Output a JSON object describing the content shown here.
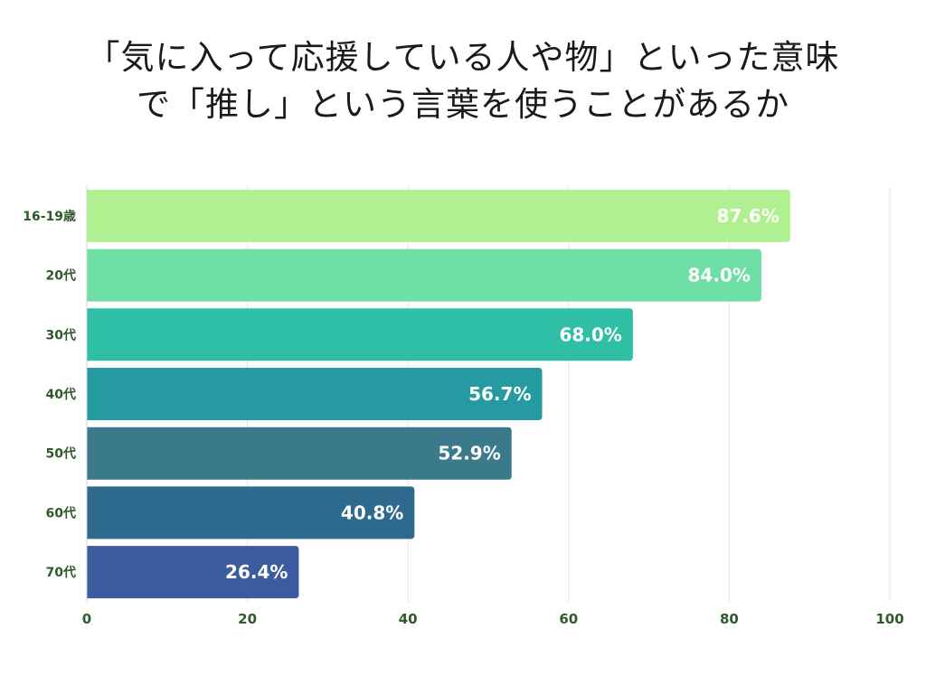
{
  "chart_data": {
    "type": "bar",
    "orientation": "horizontal",
    "title_lines": [
      "「気に入って応援している人や物」といった意味",
      "で「推し」という言葉を使うことがあるか"
    ],
    "categories": [
      "16-19歳",
      "20代",
      "30代",
      "40代",
      "50代",
      "60代",
      "70代"
    ],
    "values": [
      87.6,
      84.0,
      68.0,
      56.7,
      52.9,
      40.8,
      26.4
    ],
    "value_labels": [
      "87.6%",
      "84.0%",
      "68.0%",
      "56.7%",
      "52.9%",
      "40.8%",
      "26.4%"
    ],
    "bar_colors": [
      "#b0f090",
      "#6edfa4",
      "#2fbfa7",
      "#259aa0",
      "#3a7a8a",
      "#2e6a8e",
      "#3b5c9e"
    ],
    "xlim": [
      0,
      100
    ],
    "xticks": [
      "0",
      "20",
      "40",
      "60",
      "80",
      "100"
    ],
    "xtick_values": [
      0,
      20,
      40,
      60,
      80,
      100
    ],
    "grid": "vertical",
    "xlabel": "",
    "ylabel": "",
    "legend": "none"
  }
}
